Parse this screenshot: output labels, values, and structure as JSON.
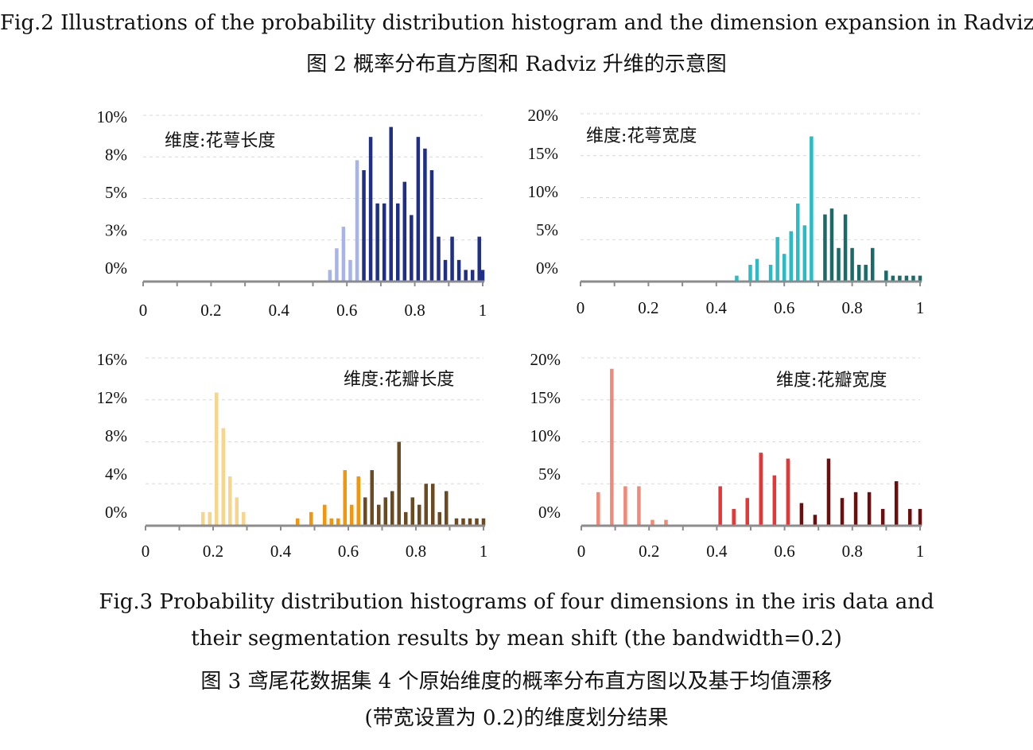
{
  "captions": {
    "fig2_en": "Fig.2    Illustrations of the probability distribution histogram and the dimension expansion in Radviz",
    "fig2_zh": "图 2    概率分布直方图和 Radviz 升维的示意图",
    "fig3_en_line1": "Fig.3    Probability distribution histograms of four dimensions in the iris data and",
    "fig3_en_line2": "their segmentation results by mean shift (the bandwidth=0.2)",
    "fig3_zh_line1": "图 3    鸢尾花数据集 4 个原始维度的概率分布直方图以及基于均值漂移",
    "fig3_zh_line2": "(带宽设置为 0.2)的维度划分结果"
  },
  "chart_data": [
    {
      "type": "bar",
      "annotation": "维度:花萼长度",
      "ytick_labels": [
        "0%",
        "3%",
        "5%",
        "8%",
        "10%"
      ],
      "xticks": [
        0,
        0.2,
        0.4,
        0.6,
        0.8,
        1
      ],
      "xtick_labels": [
        "0",
        "0.2",
        "0.4",
        "0.6",
        "0.8",
        "1"
      ],
      "xlim": [
        0,
        1
      ],
      "ylim": [
        0,
        10
      ],
      "bars": [
        {
          "x": 0.55,
          "y": 0.7,
          "color": "#a6b4ea"
        },
        {
          "x": 0.57,
          "y": 2.0,
          "color": "#a6b4ea"
        },
        {
          "x": 0.59,
          "y": 3.3,
          "color": "#a6b4ea"
        },
        {
          "x": 0.61,
          "y": 1.3,
          "color": "#a6b4ea"
        },
        {
          "x": 0.63,
          "y": 7.3,
          "color": "#a6b4ea"
        },
        {
          "x": 0.65,
          "y": 6.7,
          "color": "#1f2f88"
        },
        {
          "x": 0.67,
          "y": 8.7,
          "color": "#1f2f88"
        },
        {
          "x": 0.69,
          "y": 4.7,
          "color": "#1f2f88"
        },
        {
          "x": 0.71,
          "y": 4.7,
          "color": "#1f2f88"
        },
        {
          "x": 0.73,
          "y": 9.3,
          "color": "#1f2f88"
        },
        {
          "x": 0.75,
          "y": 4.7,
          "color": "#1f2f88"
        },
        {
          "x": 0.77,
          "y": 6.0,
          "color": "#1f2f88"
        },
        {
          "x": 0.79,
          "y": 4.0,
          "color": "#1f2f88"
        },
        {
          "x": 0.81,
          "y": 8.7,
          "color": "#1f2f88"
        },
        {
          "x": 0.83,
          "y": 8.0,
          "color": "#1f2f88"
        },
        {
          "x": 0.85,
          "y": 6.7,
          "color": "#1f2f88"
        },
        {
          "x": 0.87,
          "y": 2.7,
          "color": "#1f2f88"
        },
        {
          "x": 0.89,
          "y": 1.3,
          "color": "#1f2f88"
        },
        {
          "x": 0.91,
          "y": 2.7,
          "color": "#1f2f88"
        },
        {
          "x": 0.93,
          "y": 1.3,
          "color": "#1f2f88"
        },
        {
          "x": 0.95,
          "y": 0.7,
          "color": "#1f2f88"
        },
        {
          "x": 0.97,
          "y": 0.7,
          "color": "#1f2f88"
        },
        {
          "x": 0.99,
          "y": 2.7,
          "color": "#1f2f88"
        },
        {
          "x": 1.0,
          "y": 0.7,
          "color": "#1f2f88"
        }
      ]
    },
    {
      "type": "bar",
      "annotation": "维度:花萼宽度",
      "ytick_labels": [
        "0%",
        "5%",
        "10%",
        "15%",
        "20%"
      ],
      "xticks": [
        0,
        0.2,
        0.4,
        0.6,
        0.8,
        1
      ],
      "xtick_labels": [
        "0",
        "0.2",
        "0.4",
        "0.6",
        "0.8",
        "1"
      ],
      "xlim": [
        0,
        1
      ],
      "ylim": [
        0,
        20
      ],
      "bars": [
        {
          "x": 0.46,
          "y": 0.7,
          "color": "#29bcc6"
        },
        {
          "x": 0.5,
          "y": 2.0,
          "color": "#29bcc6"
        },
        {
          "x": 0.52,
          "y": 2.7,
          "color": "#29bcc6"
        },
        {
          "x": 0.56,
          "y": 2.0,
          "color": "#29bcc6"
        },
        {
          "x": 0.58,
          "y": 5.3,
          "color": "#29bcc6"
        },
        {
          "x": 0.6,
          "y": 3.3,
          "color": "#29bcc6"
        },
        {
          "x": 0.62,
          "y": 6.0,
          "color": "#29bcc6"
        },
        {
          "x": 0.64,
          "y": 9.3,
          "color": "#29bcc6"
        },
        {
          "x": 0.66,
          "y": 6.7,
          "color": "#29bcc6"
        },
        {
          "x": 0.68,
          "y": 17.3,
          "color": "#29bcc6"
        },
        {
          "x": 0.72,
          "y": 8.0,
          "color": "#1a6a6a"
        },
        {
          "x": 0.74,
          "y": 8.7,
          "color": "#1a6a6a"
        },
        {
          "x": 0.76,
          "y": 4.0,
          "color": "#1a6a6a"
        },
        {
          "x": 0.78,
          "y": 8.0,
          "color": "#1a6a6a"
        },
        {
          "x": 0.8,
          "y": 4.0,
          "color": "#1a6a6a"
        },
        {
          "x": 0.82,
          "y": 2.0,
          "color": "#1a6a6a"
        },
        {
          "x": 0.84,
          "y": 2.0,
          "color": "#1a6a6a"
        },
        {
          "x": 0.86,
          "y": 4.0,
          "color": "#1a6a6a"
        },
        {
          "x": 0.9,
          "y": 1.3,
          "color": "#1a6a6a"
        },
        {
          "x": 0.92,
          "y": 0.7,
          "color": "#1a6a6a"
        },
        {
          "x": 0.94,
          "y": 0.7,
          "color": "#1a6a6a"
        },
        {
          "x": 0.96,
          "y": 0.7,
          "color": "#1a6a6a"
        },
        {
          "x": 0.98,
          "y": 0.7,
          "color": "#1a6a6a"
        },
        {
          "x": 1.0,
          "y": 0.7,
          "color": "#1a6a6a"
        }
      ]
    },
    {
      "type": "bar",
      "annotation": "维度:花瓣长度",
      "ytick_labels": [
        "0%",
        "4%",
        "8%",
        "12%",
        "16%"
      ],
      "xticks": [
        0,
        0.2,
        0.4,
        0.6,
        0.8,
        1
      ],
      "xtick_labels": [
        "0",
        "0.2",
        "0.4",
        "0.6",
        "0.8",
        "1"
      ],
      "xlim": [
        0,
        1
      ],
      "ylim": [
        0,
        16
      ],
      "bars": [
        {
          "x": 0.17,
          "y": 1.3,
          "color": "#f7d58c"
        },
        {
          "x": 0.19,
          "y": 1.3,
          "color": "#f7d58c"
        },
        {
          "x": 0.21,
          "y": 12.7,
          "color": "#f7d58c"
        },
        {
          "x": 0.23,
          "y": 9.3,
          "color": "#f7d58c"
        },
        {
          "x": 0.25,
          "y": 4.7,
          "color": "#f7d58c"
        },
        {
          "x": 0.27,
          "y": 2.7,
          "color": "#f7d58c"
        },
        {
          "x": 0.29,
          "y": 1.3,
          "color": "#f7d58c"
        },
        {
          "x": 0.45,
          "y": 0.7,
          "color": "#f2960c"
        },
        {
          "x": 0.49,
          "y": 1.3,
          "color": "#f2960c"
        },
        {
          "x": 0.53,
          "y": 2.0,
          "color": "#f2960c"
        },
        {
          "x": 0.55,
          "y": 0.7,
          "color": "#f2960c"
        },
        {
          "x": 0.57,
          "y": 0.7,
          "color": "#f2960c"
        },
        {
          "x": 0.59,
          "y": 5.3,
          "color": "#f2960c"
        },
        {
          "x": 0.61,
          "y": 2.0,
          "color": "#f2960c"
        },
        {
          "x": 0.63,
          "y": 4.7,
          "color": "#f2960c"
        },
        {
          "x": 0.65,
          "y": 2.7,
          "color": "#6b4a22"
        },
        {
          "x": 0.67,
          "y": 5.3,
          "color": "#6b4a22"
        },
        {
          "x": 0.69,
          "y": 2.0,
          "color": "#6b4a22"
        },
        {
          "x": 0.71,
          "y": 2.7,
          "color": "#6b4a22"
        },
        {
          "x": 0.73,
          "y": 3.3,
          "color": "#6b4a22"
        },
        {
          "x": 0.75,
          "y": 8.0,
          "color": "#6b4a22"
        },
        {
          "x": 0.77,
          "y": 1.3,
          "color": "#6b4a22"
        },
        {
          "x": 0.79,
          "y": 2.7,
          "color": "#6b4a22"
        },
        {
          "x": 0.81,
          "y": 2.0,
          "color": "#6b4a22"
        },
        {
          "x": 0.83,
          "y": 4.0,
          "color": "#6b4a22"
        },
        {
          "x": 0.85,
          "y": 4.0,
          "color": "#6b4a22"
        },
        {
          "x": 0.87,
          "y": 1.3,
          "color": "#6b4a22"
        },
        {
          "x": 0.89,
          "y": 3.3,
          "color": "#6b4a22"
        },
        {
          "x": 0.92,
          "y": 0.7,
          "color": "#6b4a22"
        },
        {
          "x": 0.94,
          "y": 0.7,
          "color": "#6b4a22"
        },
        {
          "x": 0.96,
          "y": 0.7,
          "color": "#6b4a22"
        },
        {
          "x": 0.98,
          "y": 0.7,
          "color": "#6b4a22"
        },
        {
          "x": 1.0,
          "y": 0.7,
          "color": "#6b4a22"
        }
      ]
    },
    {
      "type": "bar",
      "annotation": "维度:花瓣宽度",
      "ytick_labels": [
        "0%",
        "5%",
        "10%",
        "15%",
        "20%"
      ],
      "xticks": [
        0,
        0.2,
        0.4,
        0.6,
        0.8,
        1
      ],
      "xtick_labels": [
        "0",
        "0.2",
        "0.4",
        "0.6",
        "0.8",
        "1"
      ],
      "xlim": [
        0,
        1
      ],
      "ylim": [
        0,
        20
      ],
      "bars": [
        {
          "x": 0.05,
          "y": 4.0,
          "color": "#f08a78"
        },
        {
          "x": 0.09,
          "y": 18.7,
          "color": "#f08a78"
        },
        {
          "x": 0.13,
          "y": 4.7,
          "color": "#f08a78"
        },
        {
          "x": 0.17,
          "y": 4.7,
          "color": "#f08a78"
        },
        {
          "x": 0.21,
          "y": 0.7,
          "color": "#f08a78"
        },
        {
          "x": 0.25,
          "y": 0.7,
          "color": "#f08a78"
        },
        {
          "x": 0.41,
          "y": 4.7,
          "color": "#e83535"
        },
        {
          "x": 0.45,
          "y": 2.0,
          "color": "#e83535"
        },
        {
          "x": 0.49,
          "y": 3.3,
          "color": "#e83535"
        },
        {
          "x": 0.53,
          "y": 8.7,
          "color": "#e83535"
        },
        {
          "x": 0.57,
          "y": 6.0,
          "color": "#e83535"
        },
        {
          "x": 0.61,
          "y": 8.0,
          "color": "#e83535"
        },
        {
          "x": 0.65,
          "y": 2.7,
          "color": "#6b0e0e"
        },
        {
          "x": 0.69,
          "y": 1.3,
          "color": "#6b0e0e"
        },
        {
          "x": 0.73,
          "y": 8.0,
          "color": "#6b0e0e"
        },
        {
          "x": 0.77,
          "y": 3.3,
          "color": "#6b0e0e"
        },
        {
          "x": 0.81,
          "y": 4.0,
          "color": "#6b0e0e"
        },
        {
          "x": 0.85,
          "y": 4.0,
          "color": "#6b0e0e"
        },
        {
          "x": 0.89,
          "y": 2.0,
          "color": "#6b0e0e"
        },
        {
          "x": 0.93,
          "y": 5.3,
          "color": "#6b0e0e"
        },
        {
          "x": 0.97,
          "y": 2.0,
          "color": "#6b0e0e"
        },
        {
          "x": 1.0,
          "y": 2.0,
          "color": "#6b0e0e"
        }
      ]
    }
  ]
}
